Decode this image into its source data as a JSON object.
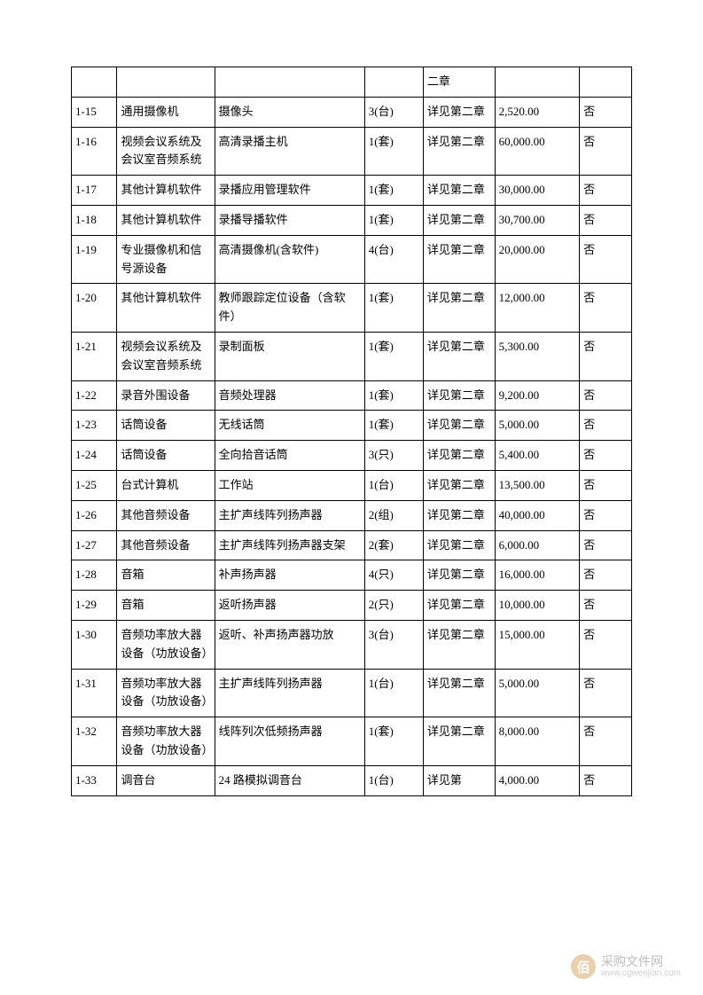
{
  "table": {
    "border_color": "#000000",
    "background_color": "#ffffff",
    "font_size": 13,
    "column_widths_percent": [
      7,
      15,
      23,
      9,
      11,
      13,
      8
    ],
    "first_row_partial": {
      "c5": "二章"
    },
    "rows": [
      {
        "c1": "1-15",
        "c2": "通用摄像机",
        "c3": "摄像头",
        "c4": "3(台)",
        "c5": "详见第二章",
        "c6": "2,520.00",
        "c7": "否"
      },
      {
        "c1": "1-16",
        "c2": "视频会议系统及会议室音频系统",
        "c3": "高清录播主机",
        "c4": "1(套)",
        "c5": "详见第二章",
        "c6": "60,000.00",
        "c7": "否"
      },
      {
        "c1": "1-17",
        "c2": "其他计算机软件",
        "c3": "录播应用管理软件",
        "c4": "1(套)",
        "c5": "详见第二章",
        "c6": "30,000.00",
        "c7": "否"
      },
      {
        "c1": "1-18",
        "c2": "其他计算机软件",
        "c3": "录播导播软件",
        "c4": "1(套)",
        "c5": "详见第二章",
        "c6": "30,700.00",
        "c7": "否"
      },
      {
        "c1": "1-19",
        "c2": "专业摄像机和信号源设备",
        "c3": "高清摄像机(含软件)",
        "c4": "4(台)",
        "c5": "详见第二章",
        "c6": "20,000.00",
        "c7": "否"
      },
      {
        "c1": "1-20",
        "c2": "其他计算机软件",
        "c3": "教师跟踪定位设备（含软件）",
        "c4": "1(套)",
        "c5": "详见第二章",
        "c6": "12,000.00",
        "c7": "否"
      },
      {
        "c1": "1-21",
        "c2": "视频会议系统及会议室音频系统",
        "c3": "录制面板",
        "c4": "1(套)",
        "c5": "详见第二章",
        "c6": "5,300.00",
        "c7": "否"
      },
      {
        "c1": "1-22",
        "c2": "录音外围设备",
        "c3": "音频处理器",
        "c4": "1(套)",
        "c5": "详见第二章",
        "c6": "9,200.00",
        "c7": "否"
      },
      {
        "c1": "1-23",
        "c2": "话筒设备",
        "c3": "无线话筒",
        "c4": "1(套)",
        "c5": "详见第二章",
        "c6": "5,000.00",
        "c7": "否"
      },
      {
        "c1": "1-24",
        "c2": "话筒设备",
        "c3": "全向拾音话筒",
        "c4": "3(只)",
        "c5": "详见第二章",
        "c6": "5,400.00",
        "c7": "否"
      },
      {
        "c1": "1-25",
        "c2": "台式计算机",
        "c3": "工作站",
        "c4": "1(台)",
        "c5": "详见第二章",
        "c6": "13,500.00",
        "c7": "否"
      },
      {
        "c1": "1-26",
        "c2": "其他音频设备",
        "c3": "主扩声线阵列扬声器",
        "c4": "2(组)",
        "c5": "详见第二章",
        "c6": "40,000.00",
        "c7": "否"
      },
      {
        "c1": "1-27",
        "c2": "其他音频设备",
        "c3": "主扩声线阵列扬声器支架",
        "c4": "2(套)",
        "c5": "详见第二章",
        "c6": "6,000.00",
        "c7": "否"
      },
      {
        "c1": "1-28",
        "c2": "音箱",
        "c3": "补声扬声器",
        "c4": "4(只)",
        "c5": "详见第二章",
        "c6": "16,000.00",
        "c7": "否"
      },
      {
        "c1": "1-29",
        "c2": "音箱",
        "c3": "返听扬声器",
        "c4": "2(只)",
        "c5": "详见第二章",
        "c6": "10,000.00",
        "c7": "否"
      },
      {
        "c1": "1-30",
        "c2": "音频功率放大器设备（功放设备）",
        "c3": "返听、补声扬声器功放",
        "c4": "3(台)",
        "c5": "详见第二章",
        "c6": "15,000.00",
        "c7": "否"
      },
      {
        "c1": "1-31",
        "c2": "音频功率放大器设备（功放设备）",
        "c3": "主扩声线阵列扬声器",
        "c4": "1(台)",
        "c5": "详见第二章",
        "c6": "5,000.00",
        "c7": "否"
      },
      {
        "c1": "1-32",
        "c2": "音频功率放大器设备（功放设备）",
        "c3": "线阵列次低频扬声器",
        "c4": "1(套)",
        "c5": "详见第二章",
        "c6": "8,000.00",
        "c7": "否"
      },
      {
        "c1": "1-33",
        "c2": "调音台",
        "c3": "24 路模拟调音台",
        "c4": "1(台)",
        "c5": "详见第",
        "c6": "4,000.00",
        "c7": "否"
      }
    ]
  },
  "watermark": {
    "icon_text": "佰",
    "title": "采购文件网",
    "url": "www.cgwenjian.com",
    "icon_bg": "#d8a868",
    "title_color": "#888888",
    "url_color": "#aaaaaa"
  }
}
